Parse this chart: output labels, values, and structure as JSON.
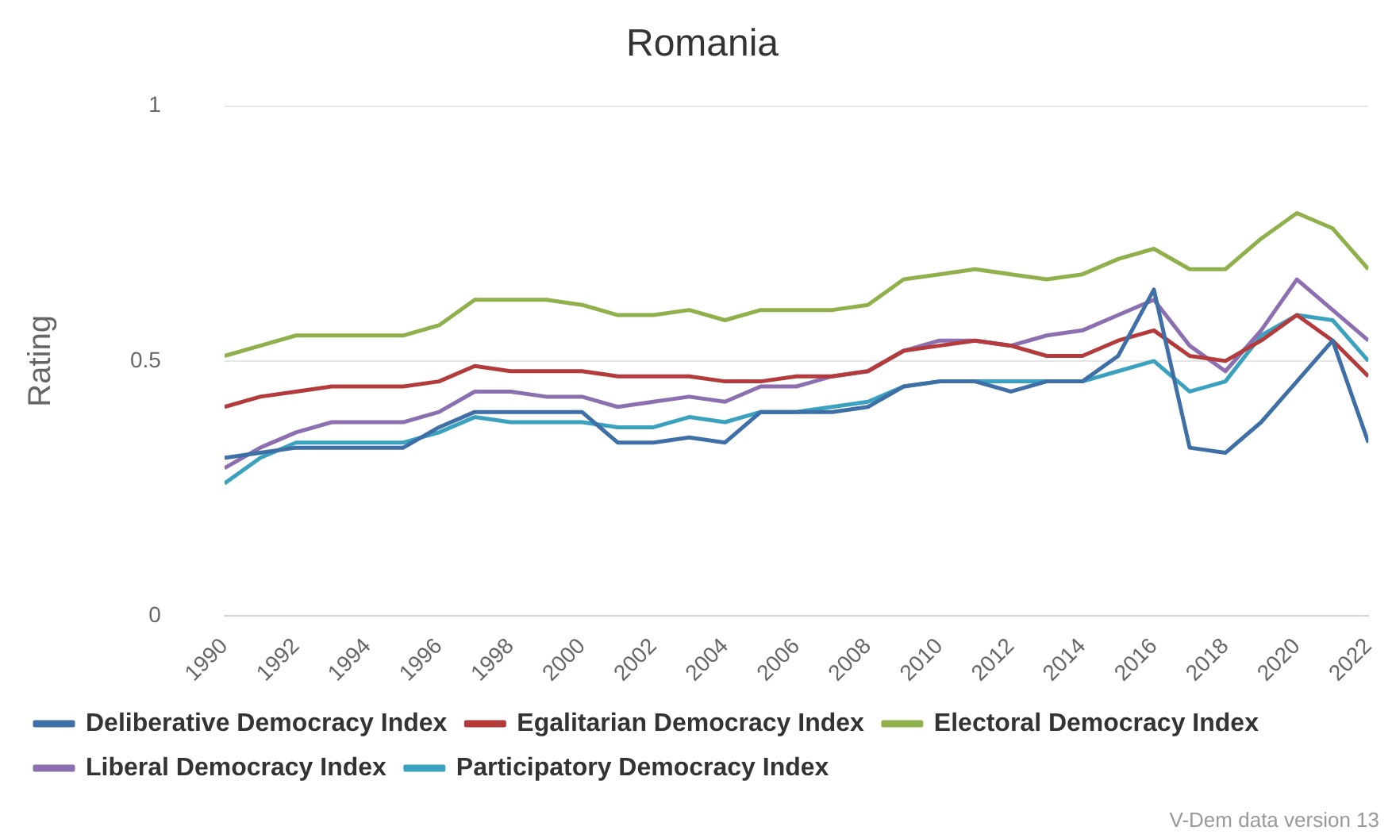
{
  "chart_data": {
    "type": "line",
    "title": "Romania",
    "ylabel": "Rating",
    "x": [
      1990,
      1991,
      1992,
      1993,
      1994,
      1995,
      1996,
      1997,
      1998,
      1999,
      2000,
      2001,
      2002,
      2003,
      2004,
      2005,
      2006,
      2007,
      2008,
      2009,
      2010,
      2011,
      2012,
      2013,
      2014,
      2015,
      2016,
      2017,
      2018,
      2019,
      2020,
      2021,
      2022
    ],
    "series": [
      {
        "name": "Deliberative Democracy Index",
        "color": "#3e6fa6",
        "values": [
          0.31,
          0.32,
          0.33,
          0.33,
          0.33,
          0.33,
          0.37,
          0.4,
          0.4,
          0.4,
          0.4,
          0.34,
          0.34,
          0.35,
          0.34,
          0.4,
          0.4,
          0.4,
          0.41,
          0.45,
          0.46,
          0.46,
          0.44,
          0.46,
          0.46,
          0.51,
          0.64,
          0.33,
          0.32,
          0.38,
          0.46,
          0.54,
          0.34
        ]
      },
      {
        "name": "Egalitarian Democracy Index",
        "color": "#b33b3b",
        "values": [
          0.41,
          0.43,
          0.44,
          0.45,
          0.45,
          0.45,
          0.46,
          0.49,
          0.48,
          0.48,
          0.48,
          0.47,
          0.47,
          0.47,
          0.46,
          0.46,
          0.47,
          0.47,
          0.48,
          0.52,
          0.53,
          0.54,
          0.53,
          0.51,
          0.51,
          0.54,
          0.56,
          0.51,
          0.5,
          0.54,
          0.59,
          0.54,
          0.47
        ]
      },
      {
        "name": "Electoral Democracy Index",
        "color": "#8fb04a",
        "values": [
          0.51,
          0.53,
          0.55,
          0.55,
          0.55,
          0.55,
          0.57,
          0.62,
          0.62,
          0.62,
          0.61,
          0.59,
          0.59,
          0.6,
          0.58,
          0.6,
          0.6,
          0.6,
          0.61,
          0.66,
          0.67,
          0.68,
          0.67,
          0.66,
          0.67,
          0.7,
          0.72,
          0.68,
          0.68,
          0.74,
          0.79,
          0.76,
          0.68
        ]
      },
      {
        "name": "Liberal Democracy Index",
        "color": "#8c6fb0",
        "values": [
          0.29,
          0.33,
          0.36,
          0.38,
          0.38,
          0.38,
          0.4,
          0.44,
          0.44,
          0.43,
          0.43,
          0.41,
          0.42,
          0.43,
          0.42,
          0.45,
          0.45,
          0.47,
          0.48,
          0.52,
          0.54,
          0.54,
          0.53,
          0.55,
          0.56,
          0.59,
          0.62,
          0.53,
          0.48,
          0.56,
          0.66,
          0.6,
          0.54
        ]
      },
      {
        "name": "Participatory Democracy Index",
        "color": "#3aa2bf",
        "values": [
          0.26,
          0.31,
          0.34,
          0.34,
          0.34,
          0.34,
          0.36,
          0.39,
          0.38,
          0.38,
          0.38,
          0.37,
          0.37,
          0.39,
          0.38,
          0.4,
          0.4,
          0.41,
          0.42,
          0.45,
          0.46,
          0.46,
          0.46,
          0.46,
          0.46,
          0.48,
          0.5,
          0.44,
          0.46,
          0.55,
          0.59,
          0.58,
          0.5
        ]
      }
    ],
    "xlim": [
      1990,
      2022
    ],
    "xticks": [
      1990,
      1992,
      1994,
      1996,
      1998,
      2000,
      2002,
      2004,
      2006,
      2008,
      2010,
      2012,
      2014,
      2016,
      2018,
      2020,
      2022
    ],
    "ylim": [
      0,
      1
    ],
    "yticks": [
      0,
      0.5,
      1
    ],
    "grid": "y",
    "legend": "bottom",
    "marker": "none",
    "line_style": "solid",
    "annotations": [
      "V-Dem data version 13"
    ]
  }
}
